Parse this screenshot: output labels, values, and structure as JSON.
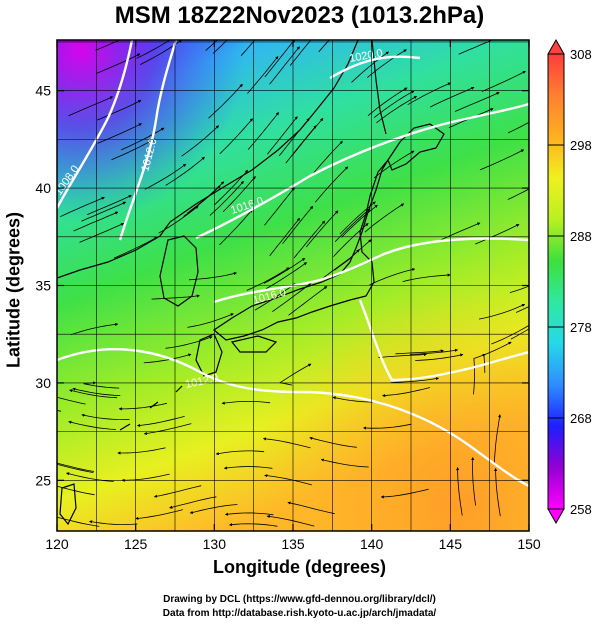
{
  "title": "MSM 18Z22Nov2023 (1013.2hPa)",
  "x_axis": {
    "label": "Longitude (degrees)",
    "ticks": [
      120,
      125,
      130,
      135,
      140,
      145,
      150
    ],
    "range": [
      120,
      150
    ]
  },
  "y_axis": {
    "label": "Latitude  (degrees)",
    "ticks": [
      25,
      30,
      35,
      40,
      45
    ],
    "range": [
      22.4,
      47.6
    ]
  },
  "colorbar": {
    "ticks": [
      258,
      268,
      278,
      288,
      298,
      308
    ],
    "range": [
      258,
      308
    ],
    "palette": [
      "#ff00ff",
      "#9400d3",
      "#1e1eff",
      "#2f8cff",
      "#26d8e8",
      "#30e8a0",
      "#3de03d",
      "#b8f020",
      "#f0f020",
      "#ffb020",
      "#ff7f30",
      "#ff3c3c"
    ]
  },
  "isobars": [
    {
      "label": "1008.0"
    },
    {
      "label": "1012.0"
    },
    {
      "label": "1016.0"
    },
    {
      "label": "1020.0"
    },
    {
      "label": "1016.0"
    },
    {
      "label": "1012.0"
    }
  ],
  "credits": {
    "line1": "Drawing by DCL (https://www.gfd-dennou.org/library/dcl/)",
    "line2": "Data from http://database.rish.kyoto-u.ac.jp/arch/jmadata/"
  },
  "colors": {
    "frame": "#000000",
    "isobar": "#ffffff",
    "streamline": "#000000",
    "land_outline": "#000000"
  }
}
